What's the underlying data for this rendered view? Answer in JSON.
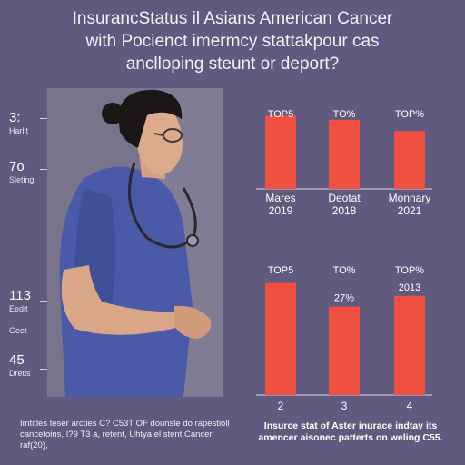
{
  "title": {
    "line1": "InsurancStatus il Asians American Cancer",
    "line2": "with Pocienct imermcy stattakpour cas",
    "line3": "anclloping steunt or deport?"
  },
  "left_stats": [
    {
      "value": "3:",
      "label": "Harlit"
    },
    {
      "value": "7o",
      "label": "Sleting"
    },
    {
      "value": "113",
      "label": "Eedit"
    },
    {
      "value": "",
      "label": "Geet"
    },
    {
      "value": "45",
      "label": "Dretis"
    }
  ],
  "chart_data": [
    {
      "type": "bar",
      "categories": [
        "Mares\n2019",
        "Deotat\n2018",
        "Monnary\n2021"
      ],
      "top_labels": [
        "TOP5",
        "TO%",
        "TOP%"
      ],
      "values": [
        72,
        68,
        57
      ],
      "ylim": [
        0,
        100
      ],
      "color": "#f0503f"
    },
    {
      "type": "bar",
      "categories": [
        "2",
        "3",
        "4"
      ],
      "top_labels": [
        "TOP5",
        "TO%",
        "TOP%"
      ],
      "data_labels": [
        "",
        "27%",
        "2013"
      ],
      "values": [
        95,
        75,
        84
      ],
      "ylim": [
        0,
        100
      ],
      "color": "#f0503f"
    }
  ],
  "footnotes": {
    "left": "Imtitles teser arcties C? C53T OF dounsle do rapestioll cancetoins, I?9 T3 a, retent, Uhtya el stent Cancer raf(20),",
    "right": "Insurce stat of Aster inurace indtay its amencer aisonec patterts on weling C55."
  },
  "colors": {
    "background": "#5f5a7e",
    "bar": "#f0503f",
    "scrub": "#4a5aa8",
    "skin": "#d9a687",
    "hair": "#1c1717"
  }
}
